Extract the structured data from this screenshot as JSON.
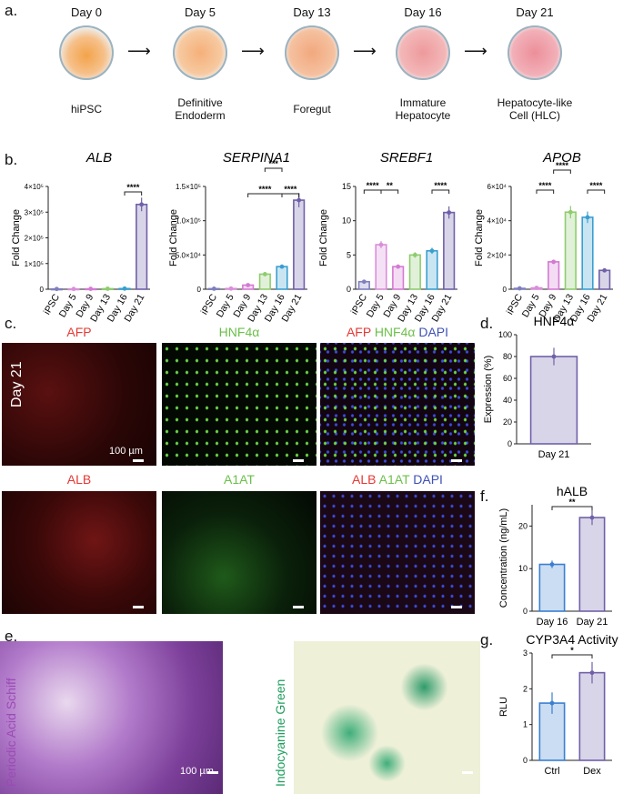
{
  "labels": {
    "a": "a.",
    "b": "b.",
    "c": "c.",
    "d": "d.",
    "e": "e.",
    "f": "f.",
    "g": "g."
  },
  "timeline": {
    "days": [
      "Day 0",
      "Day 5",
      "Day 13",
      "Day 16",
      "Day 21"
    ],
    "stages": [
      [
        "hiPSC"
      ],
      [
        "Definitive",
        "Endoderm"
      ],
      [
        "Foregut"
      ],
      [
        "Immature",
        "Hepatocyte"
      ],
      [
        "Hepatocyte-like",
        "Cell (HLC)"
      ]
    ]
  },
  "chart_data": [
    {
      "type": "bar",
      "title": "ALB",
      "ylabel": "Fold Change",
      "categories": [
        "iPSC",
        "Day 5",
        "Day 9",
        "Day 13",
        "Day 16",
        "Day 21"
      ],
      "values": [
        1000,
        1200,
        1500,
        2000,
        2500,
        330000
      ],
      "ylim": [
        0,
        400000
      ],
      "ticks": [
        "0",
        "1×10⁵",
        "2×10⁵",
        "3×10⁵",
        "4×10⁵"
      ],
      "tick_values": [
        0,
        100000,
        200000,
        300000,
        400000
      ],
      "significance": [
        {
          "from": "Day 16",
          "to": "Day 21",
          "label": "****"
        }
      ]
    },
    {
      "type": "bar",
      "title": "SERPINA1",
      "ylabel": "Fold Change",
      "categories": [
        "iPSC",
        "Day 5",
        "Day 9",
        "Day 13",
        "Day 16",
        "Day 21"
      ],
      "values": [
        800,
        1000,
        6000,
        22000,
        33000,
        130000
      ],
      "ylim": [
        0,
        150000
      ],
      "ticks": [
        "0",
        "5.0×10⁴",
        "1.0×10⁵",
        "1.5×10⁵"
      ],
      "tick_values": [
        0,
        50000,
        100000,
        150000
      ],
      "significance": [
        {
          "from": "Day 9",
          "to": "Day 16",
          "label": "****"
        },
        {
          "from": "Day 13",
          "to": "Day 16",
          "label": "***"
        },
        {
          "from": "Day 16",
          "to": "Day 21",
          "label": "****"
        }
      ]
    },
    {
      "type": "bar",
      "title": "SREBF1",
      "ylabel": "Fold Change",
      "categories": [
        "iPSC",
        "Day 5",
        "Day 9",
        "Day 13",
        "Day 16",
        "Day 21"
      ],
      "values": [
        1.1,
        6.5,
        3.3,
        5.0,
        5.6,
        11.2
      ],
      "ylim": [
        0,
        15
      ],
      "ticks": [
        "0",
        "5",
        "10",
        "15"
      ],
      "tick_values": [
        0,
        5,
        10,
        15
      ],
      "significance": [
        {
          "from": "iPSC",
          "to": "Day 5",
          "label": "****"
        },
        {
          "from": "Day 5",
          "to": "Day 9",
          "label": "**"
        },
        {
          "from": "Day 16",
          "to": "Day 21",
          "label": "****"
        }
      ]
    },
    {
      "type": "bar",
      "title": "APOB",
      "ylabel": "Fold Change",
      "categories": [
        "iPSC",
        "Day 5",
        "Day 9",
        "Day 13",
        "Day 16",
        "Day 21"
      ],
      "values": [
        500,
        800,
        16000,
        45000,
        42000,
        11000
      ],
      "ylim": [
        0,
        60000
      ],
      "ticks": [
        "0",
        "2×10⁴",
        "4×10⁴",
        "6×10⁴"
      ],
      "tick_values": [
        0,
        20000,
        40000,
        60000
      ],
      "significance": [
        {
          "from": "Day 5",
          "to": "Day 9",
          "label": "****"
        },
        {
          "from": "Day 9",
          "to": "Day 13",
          "label": "****"
        },
        {
          "from": "Day 16",
          "to": "Day 21",
          "label": "****"
        }
      ]
    },
    {
      "type": "bar",
      "title": "HNF4α",
      "ylabel": "Expression (%)",
      "categories": [
        "Day 21"
      ],
      "values": [
        80
      ],
      "ylim": [
        0,
        100
      ],
      "ticks": [
        "0",
        "20",
        "40",
        "60",
        "80",
        "100"
      ],
      "tick_values": [
        0,
        20,
        40,
        60,
        80,
        100
      ]
    },
    {
      "type": "bar",
      "title": "hALB",
      "ylabel": "Concentration (ng/mL)",
      "categories": [
        "Day 16",
        "Day 21"
      ],
      "values": [
        11,
        22
      ],
      "ylim": [
        0,
        25
      ],
      "ticks": [
        "0",
        "10",
        "20"
      ],
      "tick_values": [
        0,
        10,
        20
      ],
      "significance": [
        {
          "from": "Day 16",
          "to": "Day 21",
          "label": "**"
        }
      ]
    },
    {
      "type": "bar",
      "title": "CYP3A4 Activity",
      "ylabel": "RLU",
      "categories": [
        "Ctrl",
        "Dex"
      ],
      "values": [
        1.6,
        2.45
      ],
      "ylim": [
        0,
        3
      ],
      "ticks": [
        "0",
        "1",
        "2",
        "3"
      ],
      "tick_values": [
        0,
        1,
        2,
        3
      ],
      "significance": [
        {
          "from": "Ctrl",
          "to": "Dex",
          "label": "*"
        }
      ]
    }
  ],
  "colors": [
    "#7f7fbf",
    "#d98fd9",
    "#d47ad4",
    "#8fcc6f",
    "#3a9fd0",
    "#7060a8"
  ],
  "micro": {
    "row1": {
      "t1": "AFP",
      "t2": "HNF4α",
      "t3a": "AFP",
      "t3b": "HNF4α",
      "t3c": "DAPI"
    },
    "row2": {
      "t1": "ALB",
      "t2": "A1AT",
      "t3a": "ALB",
      "t3b": "A1AT",
      "t3c": "DAPI"
    },
    "day_label": "Day 21",
    "scale": "100 µm",
    "pas": "Periodic Acid Schiff",
    "icg": "Indocyanine Green"
  }
}
